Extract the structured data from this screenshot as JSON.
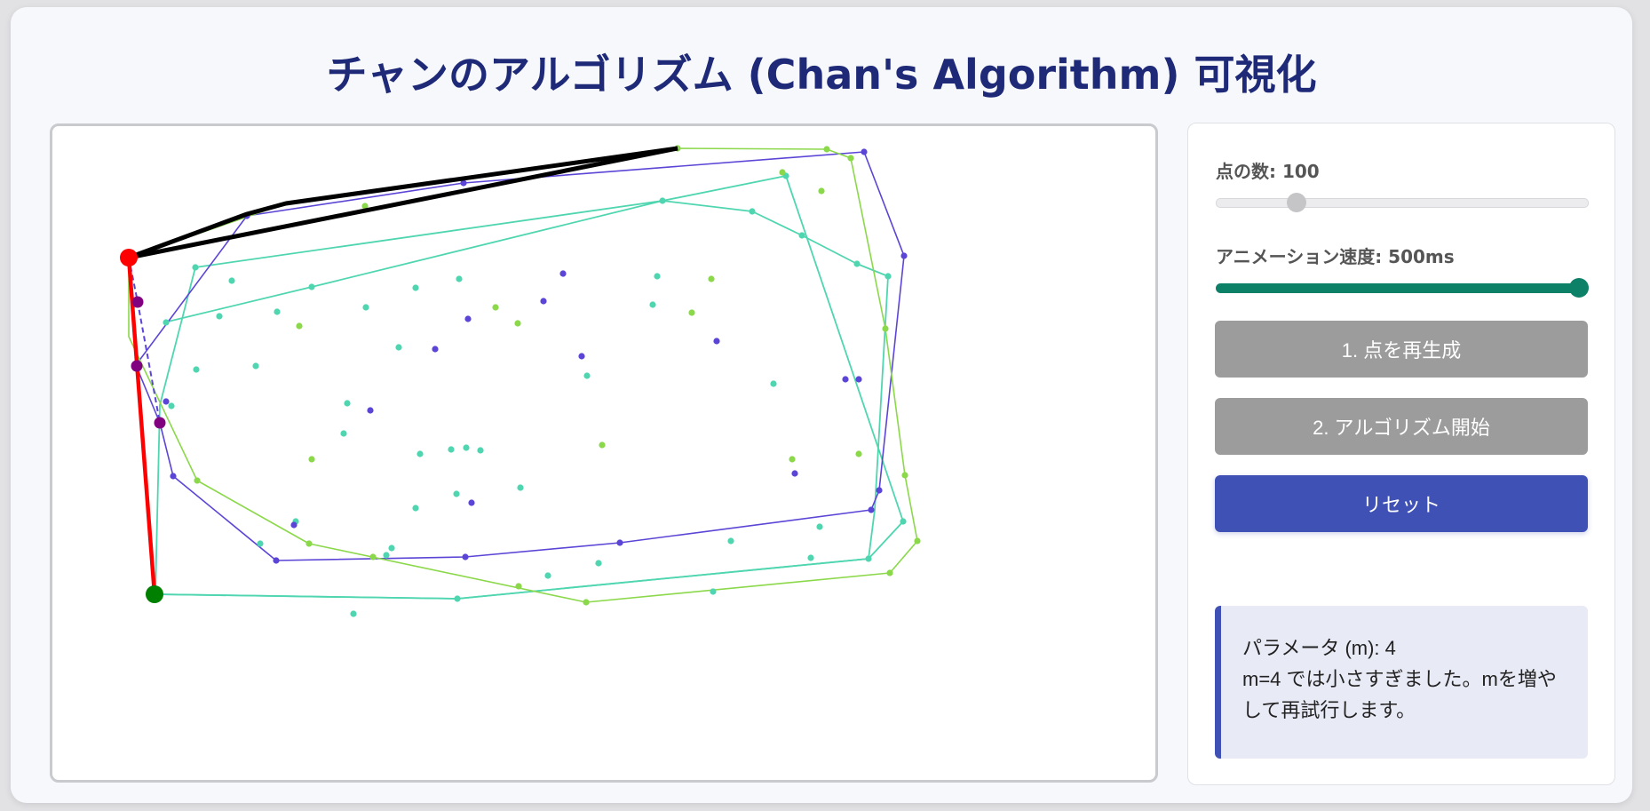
{
  "title": "チャンのアルゴリズム (Chan's Algorithm) 可視化",
  "controls": {
    "point_count_label": "点の数: 100",
    "point_count_value": 100,
    "point_count_fraction": 0.2,
    "speed_label": "アニメーション速度: 500ms",
    "speed_value_ms": 500,
    "speed_fraction": 1.0,
    "regenerate_button": "1. 点を再生成",
    "start_button": "2. アルゴリズム開始",
    "reset_button": "リセット"
  },
  "info": {
    "param_text": "パラメータ (m): 4",
    "message": "m=4 では小さすぎました。mを増やして再試行します。"
  },
  "colors": {
    "title": "#1e2a78",
    "button_disabled": "#9c9c9c",
    "button_primary": "#3f51b5",
    "slider_active": "#0d8068",
    "group_teal": "#4fd6b0",
    "group_purple": "#5b45d6",
    "group_green": "#8bd84a",
    "hull_current": "#ff0000",
    "candidate": "#800080",
    "start_point": "#008000",
    "tested_edge": "#000000"
  }
}
